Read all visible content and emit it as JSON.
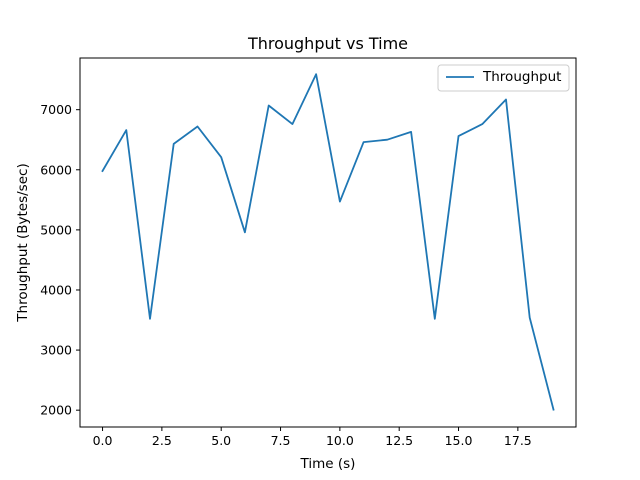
{
  "chart_data": {
    "type": "line",
    "title": "Throughput vs Time",
    "xlabel": "Time (s)",
    "ylabel": "Throughput (Bytes/sec)",
    "xlim": [
      -0.95,
      19.95
    ],
    "ylim": [
      1720,
      7860
    ],
    "x_ticks": [
      0.0,
      2.5,
      5.0,
      7.5,
      10.0,
      12.5,
      15.0,
      17.5
    ],
    "x_tick_labels": [
      "0.0",
      "2.5",
      "5.0",
      "7.5",
      "10.0",
      "12.5",
      "15.0",
      "17.5"
    ],
    "y_ticks": [
      2000,
      3000,
      4000,
      5000,
      6000,
      7000
    ],
    "y_tick_labels": [
      "2000",
      "3000",
      "4000",
      "5000",
      "6000",
      "7000"
    ],
    "grid": false,
    "legend_position": "top-right",
    "series": [
      {
        "name": "Throughput",
        "color": "#1f77b4",
        "x": [
          0,
          1,
          2,
          3,
          4,
          5,
          6,
          7,
          8,
          9,
          10,
          11,
          12,
          13,
          14,
          15,
          16,
          17,
          18,
          19
        ],
        "y": [
          5980,
          6660,
          3520,
          6430,
          6720,
          6210,
          4960,
          7070,
          6760,
          7590,
          5470,
          6460,
          6500,
          6630,
          3520,
          6560,
          6760,
          7170,
          3540,
          2010
        ]
      }
    ]
  }
}
